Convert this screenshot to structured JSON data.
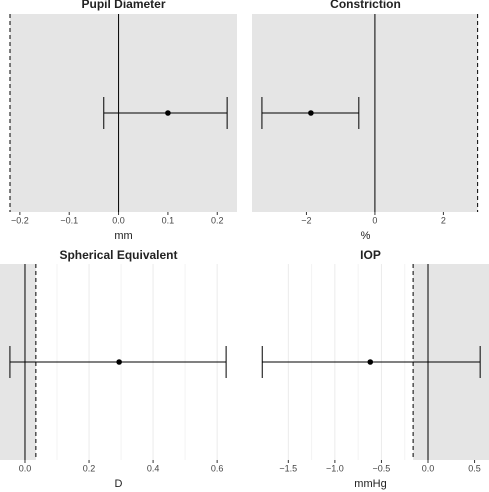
{
  "chart_data": [
    {
      "type": "forest",
      "title": "Pupil Diameter",
      "xlabel": "mm",
      "estimate": 0.1,
      "lower": -0.03,
      "upper": 0.22,
      "reference": 0,
      "threshold": -0.22,
      "shade_side": "right",
      "xlim": [
        -0.22,
        0.24
      ],
      "xticks": [
        {
          "value": -0.2,
          "label": "−0.2"
        },
        {
          "value": -0.1,
          "label": "−0.1"
        },
        {
          "value": 0,
          "label": "0.0"
        },
        0.1,
        0.2
      ]
    },
    {
      "type": "forest",
      "title": "Constriction",
      "xlabel": "%",
      "estimate": -1.87,
      "lower": -3.3,
      "upper": -0.47,
      "reference": 0,
      "threshold": 3,
      "shade_side": "left",
      "xlim": [
        -3.59,
        3.04
      ],
      "xticks": [
        {
          "value": -2,
          "label": "−2"
        },
        0,
        2
      ]
    },
    {
      "type": "forest",
      "title": "Spherical Equivalent",
      "xlabel": "D",
      "estimate": 0.294,
      "lower": -0.047,
      "upper": 0.628,
      "reference": 0,
      "threshold": 0.034,
      "shade_side": "left",
      "xlim": [
        -0.078,
        0.662
      ],
      "xticks": [
        {
          "value": 0,
          "label": "0.0"
        },
        0.2,
        0.4,
        0.6
      ]
    },
    {
      "type": "forest",
      "title": "IOP",
      "xlabel": "mmHg",
      "estimate": -0.62,
      "lower": -1.78,
      "upper": 0.56,
      "reference": 0,
      "threshold": -0.16,
      "shade_side": "right",
      "xlim": [
        -1.89,
        0.655
      ],
      "xticks": [
        {
          "value": -1.5,
          "label": "−1.5"
        },
        {
          "value": -1,
          "label": "−1.0"
        },
        {
          "value": -0.5,
          "label": "−0.5"
        },
        {
          "value": 0,
          "label": "0.0"
        },
        0.5
      ]
    }
  ]
}
